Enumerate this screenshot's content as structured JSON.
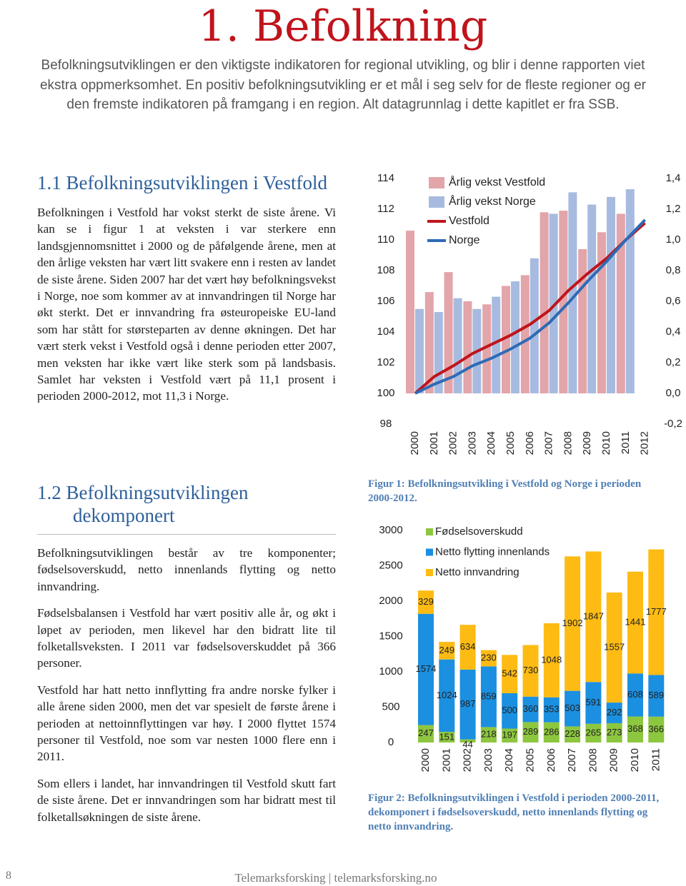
{
  "header": {
    "title": "1. Befolkning",
    "intro": "Befolkningsutviklingen er den viktigste indikatoren for regional utvikling, og blir i denne rapporten viet ekstra oppmerksomhet. En positiv befolkningsutvikling er et mål i seg selv for de fleste regioner og er den fremste indikatoren på framgang i en region. Alt datagrunnlag i dette kapitlet er fra SSB."
  },
  "sections": [
    {
      "heading": "1.1 Befolkningsutviklingen i Vestfold",
      "paragraphs": [
        "Befolkningen i Vestfold har vokst sterkt de siste årene. Vi kan se i figur 1 at veksten i var sterkere enn landsgjennomsnittet i 2000 og de påfølgende årene, men at den årlige veksten har vært litt svakere enn i resten av landet de siste årene. Siden 2007 har det vært høy befolkningsvekst i Norge, noe som kommer av at innvandringen til Norge har økt sterkt. Det er innvandring fra østeuropeiske EU-land som har stått for størsteparten av denne økningen. Det har vært sterk vekst i Vestfold også i denne perioden etter 2007, men veksten har ikke vært like sterk som på landsbasis. Samlet har veksten i Vestfold vært på 11,1 prosent i perioden 2000-2012, mot 11,3 i Norge."
      ]
    },
    {
      "heading": "1.2 Befolkningsutviklingen dekomponert",
      "paragraphs": [
        "Befolkningsutviklingen består av tre komponenter; fødselsoverskudd, netto innenlands flytting og netto innvandring.",
        "Fødselsbalansen i Vestfold har vært positiv alle år, og økt i løpet av perioden, men likevel har den bidratt lite til folketallsveksten. I 2011 var fødselsoverskuddet på 366 personer.",
        "Vestfold har hatt netto innflytting fra andre norske fylker i alle årene siden 2000, men det var spesielt de første årene i perioden at nettoinnflyttingen var høy. I 2000 flyttet 1574 personer til Vestfold, noe som var nesten 1000 flere enn i 2011.",
        "Som ellers i landet, har innvandringen til Vestfold skutt fart de siste årene.  Det er innvandringen som har bidratt mest til folketallsøkningen de siste årene."
      ]
    }
  ],
  "chart_data": [
    {
      "type": "combo",
      "caption": "Figur 1: Befolkningsutvikling i Vestfold og Norge i perioden 2000-2012.",
      "categories": [
        "2000",
        "2001",
        "2002",
        "2003",
        "2004",
        "2005",
        "2006",
        "2007",
        "2008",
        "2009",
        "2010",
        "2011",
        "2012"
      ],
      "series": [
        {
          "name": "Årlig vekst Vestfold",
          "kind": "bar",
          "axis": "y2",
          "color": "#e2a5aa",
          "values": [
            1.06,
            0.66,
            0.79,
            0.6,
            0.58,
            0.7,
            0.77,
            1.18,
            1.19,
            0.94,
            1.05,
            1.17,
            null
          ]
        },
        {
          "name": "Årlig vekst Norge",
          "kind": "bar",
          "axis": "y2",
          "color": "#a7bbe0",
          "values": [
            0.55,
            0.53,
            0.62,
            0.55,
            0.63,
            0.73,
            0.88,
            1.17,
            1.31,
            1.23,
            1.28,
            1.33,
            null
          ]
        },
        {
          "name": "Vestfold",
          "kind": "line",
          "color": "#c0141c",
          "values": [
            100,
            101.1,
            101.8,
            102.6,
            103.2,
            103.8,
            104.5,
            105.4,
            106.7,
            107.8,
            108.8,
            110,
            111.1
          ]
        },
        {
          "name": "Norge",
          "kind": "line",
          "color": "#2e6bb5",
          "values": [
            100,
            100.6,
            101.1,
            101.8,
            102.3,
            102.9,
            103.6,
            104.6,
            105.9,
            107.3,
            108.6,
            110,
            111.3
          ]
        }
      ],
      "ylim": [
        98,
        114
      ],
      "yticks": [
        98,
        100,
        102,
        104,
        106,
        108,
        110,
        112,
        114
      ],
      "y2lim": [
        -0.2,
        1.4
      ],
      "y2ticks": [
        {
          "value": -0.2,
          "label": "-0,2"
        },
        {
          "value": 0,
          "label": "0,0"
        },
        {
          "value": 0.2,
          "label": "0,2"
        },
        {
          "value": 0.4,
          "label": "0,4"
        },
        {
          "value": 0.6,
          "label": "0,6"
        },
        {
          "value": 0.8,
          "label": "0,8"
        },
        {
          "value": 1,
          "label": "1,0"
        },
        {
          "value": 1.2,
          "label": "1,2"
        },
        {
          "value": 1.4,
          "label": "1,4"
        }
      ]
    },
    {
      "type": "stacked_bar",
      "caption": "Figur 2: Befolkningsutviklingen i Vestfold i perioden 2000-2011, dekomponert i fødselsoverskudd, netto innenlands flytting og netto innvandring.",
      "categories": [
        "2000",
        "2001",
        "2002",
        "2003",
        "2004",
        "2005",
        "2006",
        "2007",
        "2008",
        "2009",
        "2010",
        "2011"
      ],
      "series": [
        {
          "name": "Fødselsoverskudd",
          "color": "#8dc63f",
          "values": [
            247,
            151,
            44,
            218,
            197,
            289,
            286,
            228,
            265,
            273,
            368,
            366
          ]
        },
        {
          "name": "Netto flytting innenlands",
          "color": "#1b8fe0",
          "values": [
            1574,
            1024,
            987,
            859,
            500,
            360,
            353,
            503,
            591,
            292,
            608,
            589
          ]
        },
        {
          "name": "Netto innvandring",
          "color": "#fdbb13",
          "values": [
            329,
            249,
            634,
            230,
            542,
            730,
            1048,
            1902,
            1847,
            1557,
            1441,
            1777
          ]
        }
      ],
      "ylim": [
        0,
        3000
      ],
      "yticks": [
        0,
        500,
        1000,
        1500,
        2000,
        2500,
        3000
      ]
    }
  ],
  "footer": {
    "page": "8",
    "text": "Telemarksforsking  |  telemarksforsking.no"
  }
}
